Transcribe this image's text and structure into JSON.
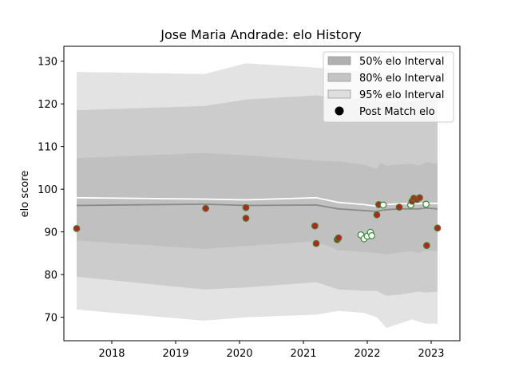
{
  "chart_data": {
    "type": "area",
    "title": "Jose Maria Andrade: elo History",
    "xlabel": "",
    "ylabel": "elo score",
    "xlim": [
      2017.25,
      2023.45
    ],
    "ylim": [
      64.5,
      133.5
    ],
    "x_ticks": [
      {
        "value": 2018,
        "label": "2018"
      },
      {
        "value": 2019,
        "label": "2019"
      },
      {
        "value": 2020,
        "label": "2020"
      },
      {
        "value": 2021,
        "label": "2021"
      },
      {
        "value": 2022,
        "label": "2022"
      },
      {
        "value": 2023,
        "label": "2023"
      }
    ],
    "y_ticks": [
      {
        "value": 70,
        "label": "70"
      },
      {
        "value": 80,
        "label": "80"
      },
      {
        "value": 90,
        "label": "90"
      },
      {
        "value": 100,
        "label": "100"
      },
      {
        "value": 110,
        "label": "110"
      },
      {
        "value": 120,
        "label": "120"
      },
      {
        "value": 130,
        "label": "130"
      }
    ],
    "grid": false,
    "legend_position": "top-right",
    "legend": [
      {
        "label": "50% elo Interval",
        "kind": "patch",
        "color": "#b0b0b0"
      },
      {
        "label": "80% elo Interval",
        "kind": "patch",
        "color": "#c4c4c4"
      },
      {
        "label": "95% elo Interval",
        "kind": "patch",
        "color": "#dedede"
      },
      {
        "label": "Post Match elo",
        "kind": "marker",
        "color": "#000000"
      }
    ],
    "x": [
      2017.45,
      2019.45,
      2020.1,
      2021.2,
      2021.55,
      2021.95,
      2022.15,
      2022.2,
      2022.3,
      2022.5,
      2022.7,
      2022.8,
      2022.92,
      2023.1
    ],
    "bands": [
      {
        "name": "95% elo Interval",
        "color": "#e3e3e3",
        "upper": [
          127.5,
          127.0,
          129.5,
          128.5,
          128.0,
          127.5,
          127.0,
          127.0,
          127.0,
          127.0,
          127.0,
          127.0,
          127.5,
          127.5
        ],
        "lower": [
          71.8,
          69.2,
          70.0,
          70.6,
          71.5,
          71.0,
          70.0,
          69.2,
          67.5,
          68.5,
          69.5,
          69.0,
          68.5,
          68.5
        ]
      },
      {
        "name": "80% elo Interval",
        "color": "#cccccc",
        "upper": [
          118.5,
          119.5,
          121.0,
          122.0,
          121.5,
          121.0,
          120.5,
          120.5,
          120.5,
          120.5,
          120.5,
          120.5,
          121.0,
          120.8
        ],
        "lower": [
          79.5,
          76.5,
          77.0,
          78.2,
          76.5,
          76.2,
          76.2,
          75.8,
          75.0,
          75.3,
          75.8,
          76.0,
          75.8,
          76.0
        ]
      },
      {
        "name": "50% elo Interval",
        "color": "#c0c0c0",
        "upper": [
          107.3,
          108.5,
          108.0,
          106.7,
          106.5,
          105.8,
          104.7,
          106.2,
          105.5,
          105.8,
          106.0,
          105.5,
          106.3,
          106.0
        ],
        "lower": [
          88.0,
          86.0,
          86.7,
          87.8,
          85.7,
          85.3,
          85.0,
          85.0,
          84.7,
          85.2,
          85.5,
          85.0,
          85.7,
          85.5
        ]
      }
    ],
    "center_line": {
      "color": "#8a8a8a",
      "values": [
        96.2,
        96.5,
        96.2,
        96.3,
        95.4,
        95.0,
        94.8,
        95.0,
        95.2,
        95.4,
        95.4,
        95.4,
        95.6,
        95.4
      ]
    },
    "upper_line": {
      "color": "#ffffff",
      "values": [
        98.0,
        97.7,
        97.5,
        98.0,
        96.9,
        96.4,
        96.0,
        96.2,
        96.4,
        96.6,
        96.6,
        96.6,
        96.7,
        96.7
      ]
    },
    "post_match_points": [
      {
        "x": 2017.45,
        "y": 90.8,
        "result": "loss"
      },
      {
        "x": 2019.47,
        "y": 95.5,
        "result": "loss"
      },
      {
        "x": 2020.1,
        "y": 95.7,
        "result": "loss"
      },
      {
        "x": 2020.1,
        "y": 93.2,
        "result": "loss"
      },
      {
        "x": 2021.18,
        "y": 91.4,
        "result": "loss"
      },
      {
        "x": 2021.2,
        "y": 87.3,
        "result": "loss"
      },
      {
        "x": 2021.53,
        "y": 88.2,
        "result": "loss"
      },
      {
        "x": 2021.55,
        "y": 88.6,
        "result": "loss"
      },
      {
        "x": 2021.9,
        "y": 89.3,
        "result": "win"
      },
      {
        "x": 2021.95,
        "y": 88.4,
        "result": "win"
      },
      {
        "x": 2022.0,
        "y": 89.0,
        "result": "win"
      },
      {
        "x": 2022.05,
        "y": 89.9,
        "result": "win"
      },
      {
        "x": 2022.07,
        "y": 89.1,
        "result": "win"
      },
      {
        "x": 2022.15,
        "y": 94.0,
        "result": "loss"
      },
      {
        "x": 2022.18,
        "y": 96.4,
        "result": "loss"
      },
      {
        "x": 2022.25,
        "y": 96.3,
        "result": "win"
      },
      {
        "x": 2022.5,
        "y": 95.8,
        "result": "loss"
      },
      {
        "x": 2022.68,
        "y": 96.3,
        "result": "win"
      },
      {
        "x": 2022.7,
        "y": 97.2,
        "result": "loss"
      },
      {
        "x": 2022.73,
        "y": 97.9,
        "result": "loss"
      },
      {
        "x": 2022.78,
        "y": 97.6,
        "result": "loss"
      },
      {
        "x": 2022.82,
        "y": 98.0,
        "result": "loss"
      },
      {
        "x": 2022.92,
        "y": 96.5,
        "result": "win"
      },
      {
        "x": 2022.93,
        "y": 86.8,
        "result": "loss"
      },
      {
        "x": 2023.1,
        "y": 90.9,
        "result": "loss"
      }
    ],
    "point_colors": {
      "loss_fill": "#cc1a1a",
      "win_fill": "#ffffff",
      "edge": "#2e8b2e"
    }
  }
}
